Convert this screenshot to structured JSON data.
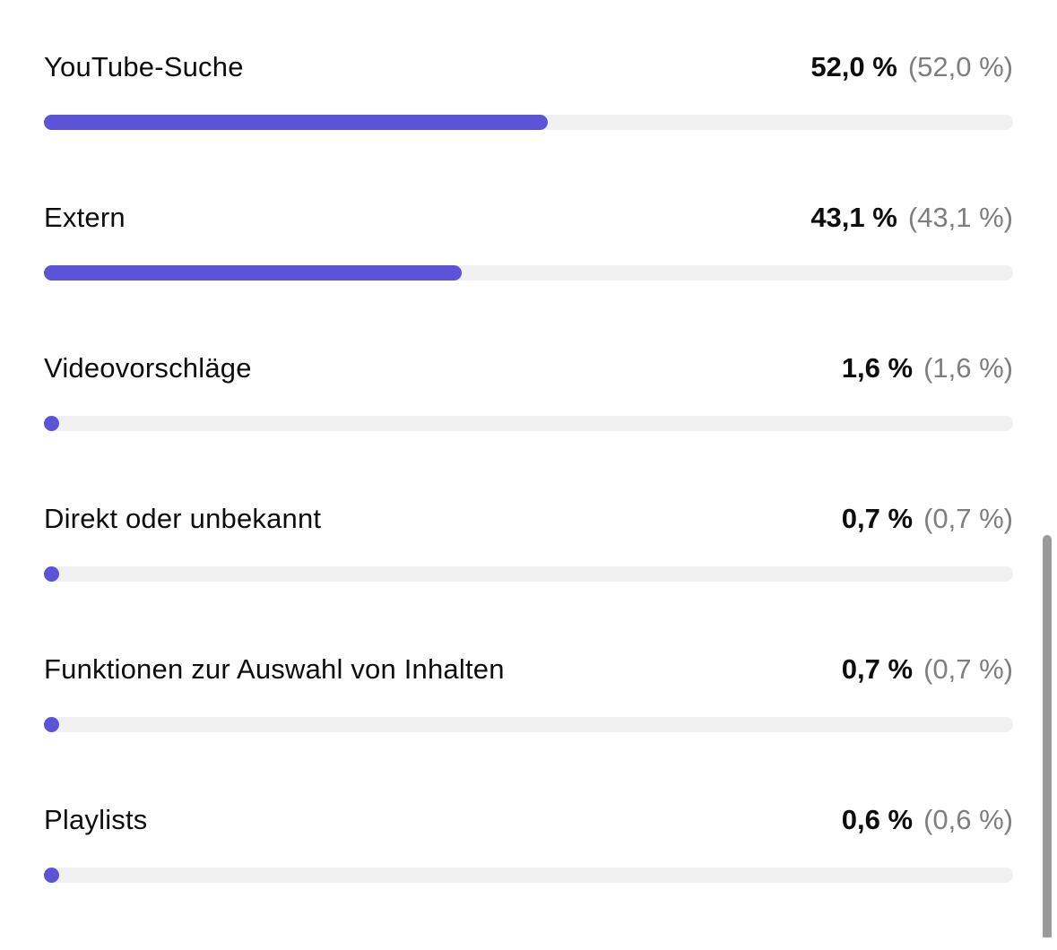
{
  "chart_data": {
    "type": "bar",
    "orientation": "horizontal",
    "categories": [
      "YouTube-Suche",
      "Extern",
      "Videovorschläge",
      "Direkt oder unbekannt",
      "Funktionen zur Auswahl von Inhalten",
      "Playlists"
    ],
    "values": [
      52.0,
      43.1,
      1.6,
      0.7,
      0.7,
      0.6
    ],
    "value_labels": [
      "52,0 %",
      "43,1 %",
      "1,6 %",
      "0,7 %",
      "0,7 %",
      "0,6 %"
    ],
    "secondary_labels": [
      "(52,0 %)",
      "(43,1 %)",
      "(1,6 %)",
      "(0,7 %)",
      "(0,7 %)",
      "(0,6 %)"
    ],
    "xlim": [
      0,
      100
    ],
    "bar_color": "#5b54d6",
    "track_color": "#f0f0f1"
  },
  "rows": [
    {
      "label": "YouTube-Suche",
      "value": 52.0,
      "percent": "52,0 %",
      "percent_secondary": "(52,0 %)"
    },
    {
      "label": "Extern",
      "value": 43.1,
      "percent": "43,1 %",
      "percent_secondary": "(43,1 %)"
    },
    {
      "label": "Videovorschläge",
      "value": 1.6,
      "percent": "1,6 %",
      "percent_secondary": "(1,6 %)"
    },
    {
      "label": "Direkt oder unbekannt",
      "value": 0.7,
      "percent": "0,7 %",
      "percent_secondary": "(0,7 %)"
    },
    {
      "label": "Funktionen zur Auswahl von Inhalten",
      "value": 0.7,
      "percent": "0,7 %",
      "percent_secondary": "(0,7 %)"
    },
    {
      "label": "Playlists",
      "value": 0.6,
      "percent": "0,6 %",
      "percent_secondary": "(0,6 %)"
    }
  ],
  "colors": {
    "bar_fill": "#5b54d6",
    "bar_track": "#f0f0f1",
    "text_primary": "#0d0d0d",
    "text_secondary": "#7e7e7e",
    "scrollbar": "#9a9a9a",
    "background": "#ffffff"
  }
}
